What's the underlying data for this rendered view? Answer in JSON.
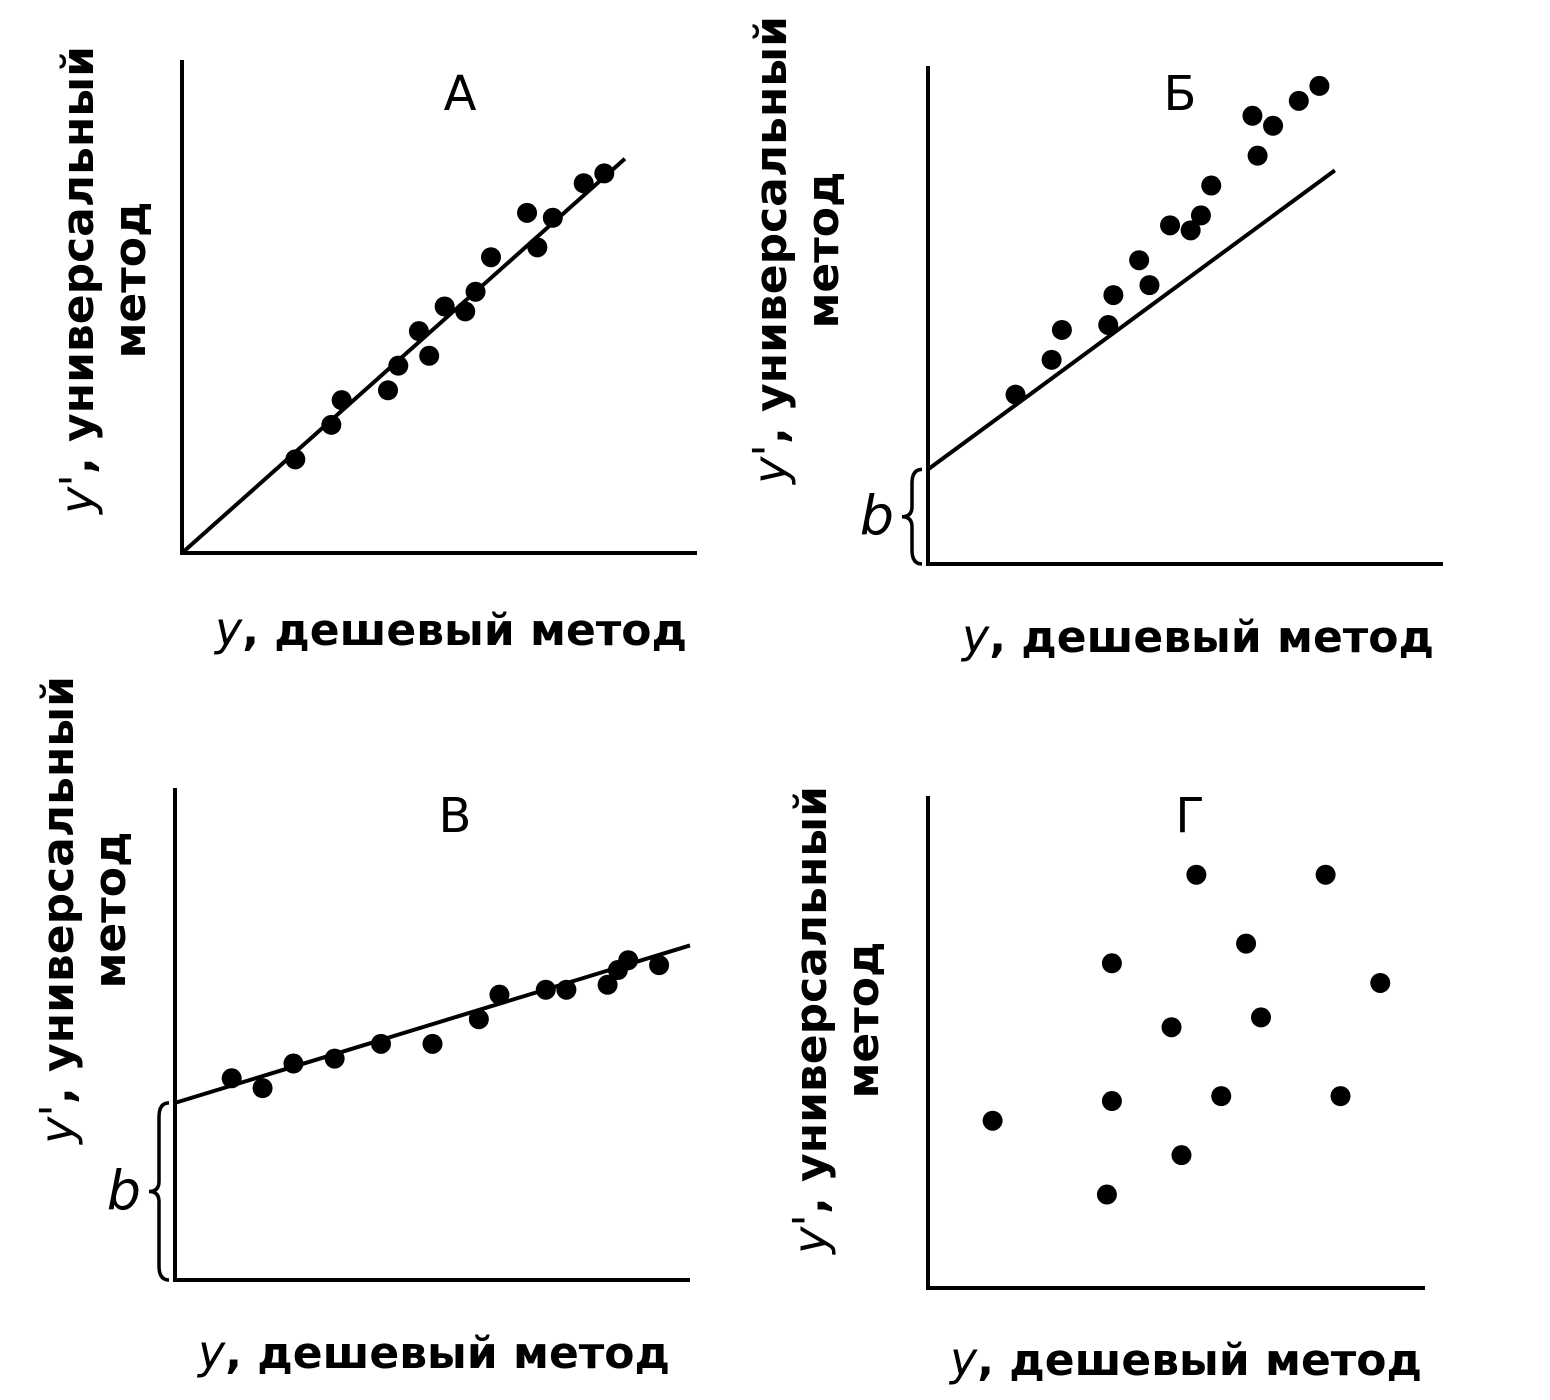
{
  "chart_data": [
    {
      "type": "scatter",
      "title": "А",
      "xlabel": "y, дешевый метод",
      "ylabel": "y', универсальный метод",
      "xlim": [
        0,
        10
      ],
      "ylim": [
        0,
        10
      ],
      "fit_line": {
        "slope": 0.93,
        "intercept": 0,
        "x_start": 0,
        "x_end": 8.6
      },
      "intercept_label": "",
      "points": [
        [
          2.2,
          1.9
        ],
        [
          2.9,
          2.6
        ],
        [
          3.1,
          3.1
        ],
        [
          4.0,
          3.3
        ],
        [
          4.2,
          3.8
        ],
        [
          4.6,
          4.5
        ],
        [
          4.8,
          4.0
        ],
        [
          5.1,
          5.0
        ],
        [
          5.5,
          4.9
        ],
        [
          5.7,
          5.3
        ],
        [
          6.0,
          6.0
        ],
        [
          6.7,
          6.9
        ],
        [
          6.9,
          6.2
        ],
        [
          7.2,
          6.8
        ],
        [
          7.8,
          7.5
        ],
        [
          8.2,
          7.7
        ]
      ]
    },
    {
      "type": "scatter",
      "title": "Б",
      "xlabel": "y, дешевый метод",
      "ylabel": "y', универсальный метод",
      "xlim": [
        0,
        10
      ],
      "ylim": [
        0,
        10
      ],
      "fit_line": {
        "slope": 0.76,
        "intercept": 1.9,
        "x_start": 0,
        "x_end": 7.9
      },
      "intercept_label": "b",
      "points": [
        [
          1.7,
          3.4
        ],
        [
          2.4,
          4.1
        ],
        [
          2.6,
          4.7
        ],
        [
          3.5,
          4.8
        ],
        [
          3.6,
          5.4
        ],
        [
          4.1,
          6.1
        ],
        [
          4.3,
          5.6
        ],
        [
          4.7,
          6.8
        ],
        [
          5.1,
          6.7
        ],
        [
          5.3,
          7.0
        ],
        [
          5.5,
          7.6
        ],
        [
          6.3,
          9.0
        ],
        [
          6.4,
          8.2
        ],
        [
          6.7,
          8.8
        ],
        [
          7.2,
          9.3
        ],
        [
          7.6,
          9.6
        ]
      ]
    },
    {
      "type": "scatter",
      "title": "В",
      "xlabel": "y, дешевый метод",
      "ylabel": "y', универсальный метод",
      "xlim": [
        0,
        10
      ],
      "ylim": [
        0,
        10
      ],
      "fit_line": {
        "slope": 0.32,
        "intercept": 3.6,
        "x_start": 0,
        "x_end": 10
      },
      "intercept_label": "b",
      "points": [
        [
          1.1,
          4.1
        ],
        [
          1.7,
          3.9
        ],
        [
          2.3,
          4.4
        ],
        [
          3.1,
          4.5
        ],
        [
          4.0,
          4.8
        ],
        [
          5.0,
          4.8
        ],
        [
          5.9,
          5.3
        ],
        [
          6.3,
          5.8
        ],
        [
          7.2,
          5.9
        ],
        [
          7.6,
          5.9
        ],
        [
          8.4,
          6.0
        ],
        [
          8.6,
          6.3
        ],
        [
          8.8,
          6.5
        ],
        [
          9.4,
          6.4
        ]
      ]
    },
    {
      "type": "scatter",
      "title": "Г",
      "xlabel": "y, дешевый метод",
      "ylabel": "y', универсальный метод",
      "xlim": [
        0,
        10
      ],
      "ylim": [
        0,
        10
      ],
      "fit_line": null,
      "intercept_label": "",
      "points": [
        [
          1.3,
          3.4
        ],
        [
          3.6,
          1.9
        ],
        [
          3.7,
          3.8
        ],
        [
          3.7,
          6.6
        ],
        [
          4.9,
          5.3
        ],
        [
          5.1,
          2.7
        ],
        [
          5.4,
          8.4
        ],
        [
          5.9,
          3.9
        ],
        [
          6.4,
          7.0
        ],
        [
          6.7,
          5.5
        ],
        [
          8.0,
          8.4
        ],
        [
          8.3,
          3.9
        ],
        [
          9.1,
          6.2
        ]
      ]
    }
  ]
}
